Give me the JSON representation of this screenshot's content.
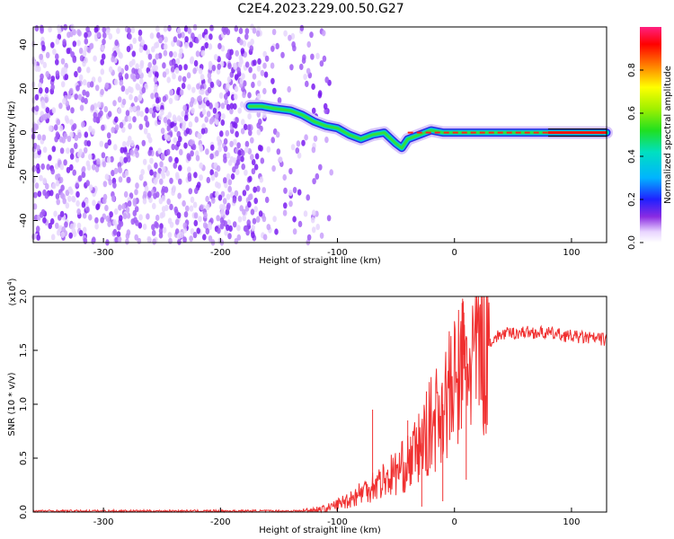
{
  "title": "C2E4.2023.229.00.50.G27",
  "chart_data": [
    {
      "type": "heatmap",
      "xlabel": "Height of straight line (km)",
      "ylabel": "Frequency (Hz)",
      "xlim": [
        -360,
        130
      ],
      "ylim": [
        -50,
        48
      ],
      "xticks": [
        -300,
        -200,
        -100,
        0,
        100
      ],
      "yticks": [
        -40,
        -20,
        0,
        20,
        40
      ],
      "noise_region_x": [
        -360,
        -125
      ],
      "track": {
        "x": [
          -175,
          -165,
          -155,
          -140,
          -130,
          -120,
          -110,
          -100,
          -90,
          -80,
          -70,
          -60,
          -50,
          -45,
          -40,
          -30,
          -20,
          -10,
          0,
          20,
          40,
          60,
          80,
          100,
          130
        ],
        "y": [
          12,
          12,
          11,
          10,
          8,
          5,
          3,
          2,
          -1,
          -3,
          -1,
          0,
          -5,
          -7,
          -3,
          -1,
          1,
          0,
          0,
          0,
          0,
          0,
          0,
          0,
          0
        ]
      },
      "colorbar": {
        "label": "Normalized spectral amplitude",
        "range": [
          0,
          1
        ],
        "ticks": [
          "0.0",
          "0.2",
          "0.4",
          "0.6",
          "0.8"
        ]
      }
    },
    {
      "type": "line",
      "xlabel": "Height of straight line (km)",
      "ylabel": "SNR (10 * v/v)",
      "multiplier": "(x10",
      "multiplier_exp": "4",
      "multiplier_close": ")",
      "xlim": [
        -360,
        130
      ],
      "ylim": [
        0,
        2.0
      ],
      "xticks": [
        -300,
        -200,
        -100,
        0,
        100
      ],
      "yticks": [
        "0.0",
        "0.5",
        "1.0",
        "1.5",
        "2.0"
      ],
      "series": [
        {
          "color": "#f03030",
          "x": [
            -360,
            -300,
            -200,
            -130,
            -110,
            -100,
            -90,
            -80,
            -70,
            -60,
            -50,
            -40,
            -30,
            -20,
            -10,
            0,
            5,
            10,
            20,
            30,
            40,
            60,
            80,
            100,
            130
          ],
          "y": [
            0.01,
            0.01,
            0.01,
            0.01,
            0.03,
            0.07,
            0.12,
            0.18,
            0.25,
            0.3,
            0.37,
            0.45,
            0.6,
            0.8,
            1.0,
            1.15,
            1.3,
            1.35,
            1.5,
            1.58,
            1.65,
            1.67,
            1.66,
            1.63,
            1.6
          ]
        }
      ],
      "spikes": [
        {
          "x": 7,
          "y": 1.98
        },
        {
          "x": 10,
          "y": 0.3
        },
        {
          "x": 8,
          "y": 1.85
        },
        {
          "x": -10,
          "y": 0.1
        },
        {
          "x": -28,
          "y": 0.05
        },
        {
          "x": -70,
          "y": 0.95
        },
        {
          "x": -40,
          "y": 0.85
        }
      ]
    }
  ]
}
